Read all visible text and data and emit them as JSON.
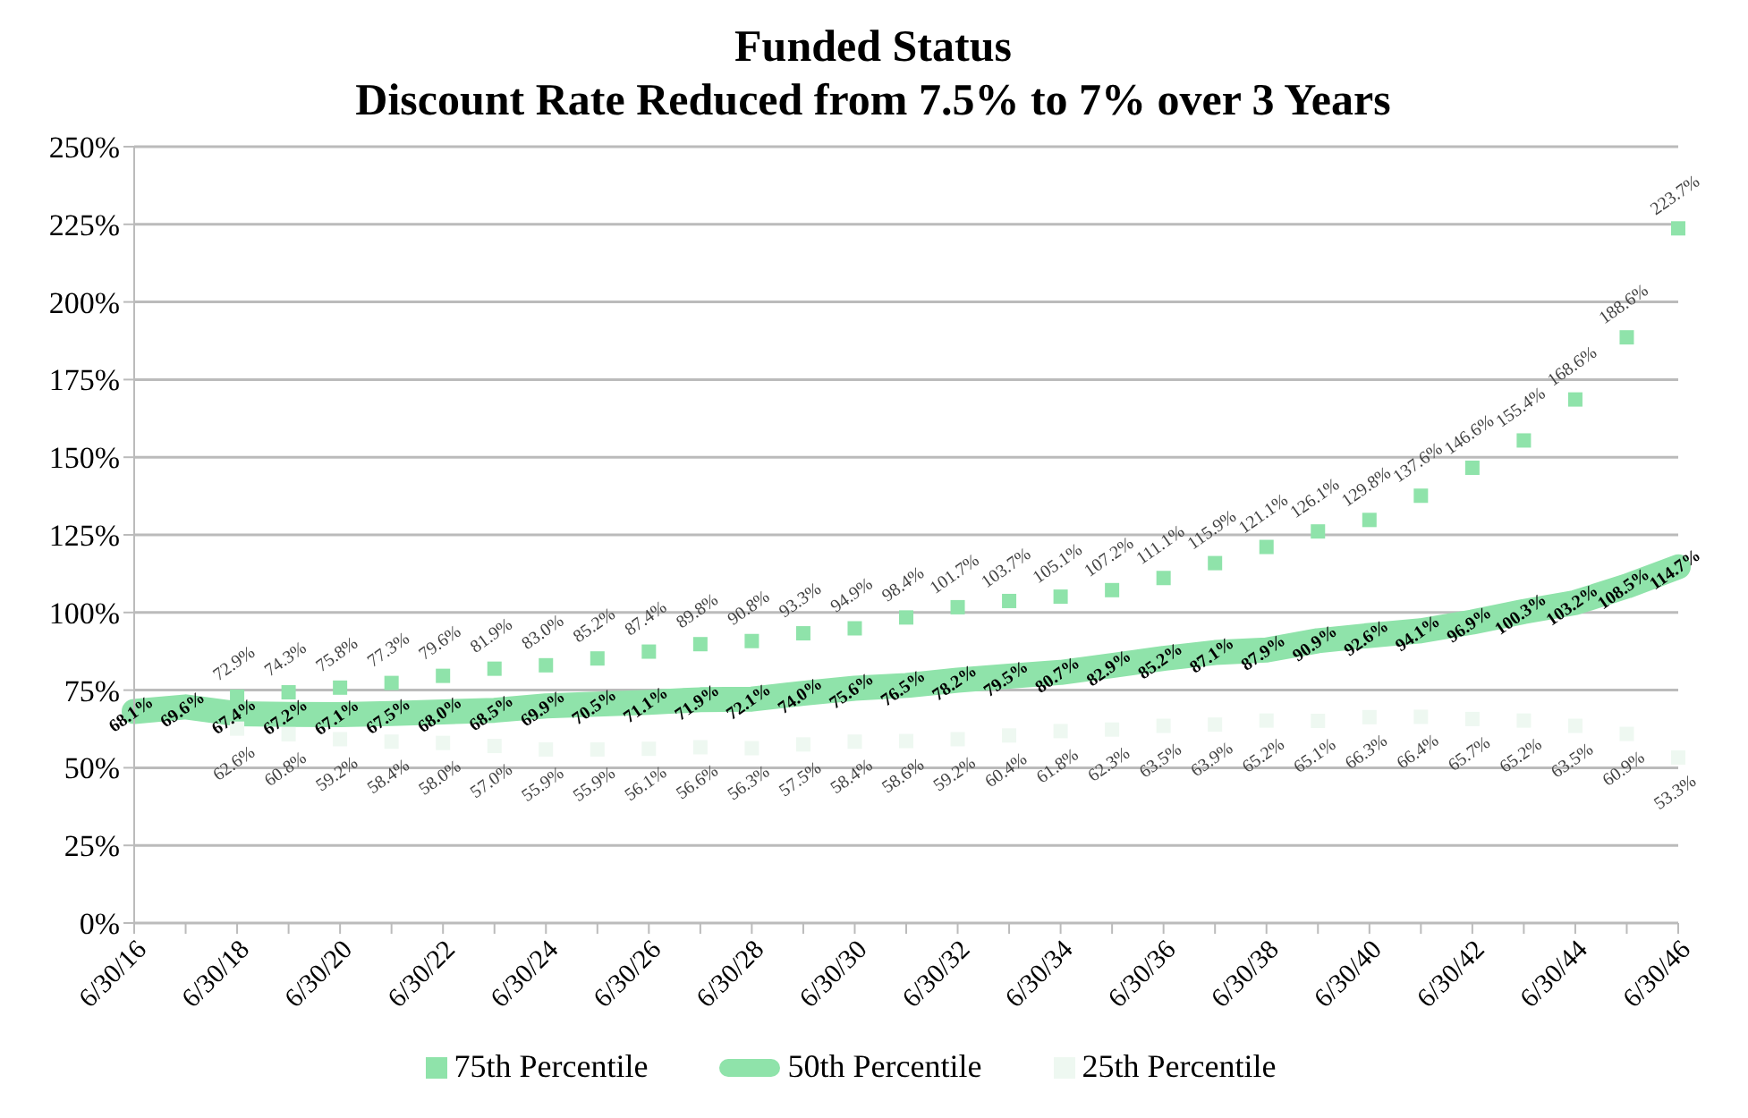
{
  "chart_data": {
    "type": "line",
    "title": "Funded Status",
    "subtitle": "Discount Rate Reduced from 7.5% to 7% over 3 Years",
    "categories": [
      "6/30/16",
      null,
      "6/30/18",
      null,
      "6/30/20",
      null,
      "6/30/22",
      null,
      "6/30/24",
      null,
      "6/30/26",
      null,
      "6/30/28",
      null,
      "6/30/30",
      null,
      "6/30/32",
      null,
      "6/30/34",
      null,
      "6/30/36",
      null,
      "6/30/38",
      null,
      "6/30/40",
      null,
      "6/30/42",
      null,
      "6/30/44",
      null,
      "6/30/46"
    ],
    "series": [
      {
        "name": "75th Percentile",
        "type": "scatter",
        "marker": "square",
        "color": "#8fe3aa",
        "values": [
          null,
          null,
          72.9,
          74.3,
          75.8,
          77.3,
          79.6,
          81.9,
          83.0,
          85.2,
          87.4,
          89.8,
          90.8,
          93.3,
          94.9,
          98.4,
          101.7,
          103.7,
          105.1,
          107.2,
          111.1,
          115.9,
          121.1,
          126.1,
          129.8,
          137.6,
          146.6,
          155.4,
          168.6,
          188.6,
          223.7
        ],
        "value_labels": [
          null,
          null,
          "72.9%",
          "74.3%",
          "75.8%",
          "77.3%",
          "79.6%",
          "81.9%",
          "83.0%",
          "85.2%",
          "87.4%",
          "89.8%",
          "90.8%",
          "93.3%",
          "94.9%",
          "98.4%",
          "101.7%",
          "103.7%",
          "105.1%",
          "107.2%",
          "111.1%",
          "115.9%",
          "121.1%",
          "126.1%",
          "129.8%",
          "137.6%",
          "146.6%",
          "155.4%",
          "168.6%",
          "188.6%",
          "223.7%"
        ]
      },
      {
        "name": "50th Percentile",
        "marker": "none",
        "color": "#8fe3aa",
        "values": [
          68.1,
          69.6,
          67.4,
          67.2,
          67.1,
          67.5,
          68.0,
          68.5,
          69.9,
          70.5,
          71.1,
          71.9,
          72.1,
          74.0,
          75.6,
          76.5,
          78.2,
          79.5,
          80.7,
          82.9,
          85.2,
          87.1,
          87.9,
          90.9,
          92.6,
          94.1,
          96.9,
          100.3,
          103.2,
          108.5,
          114.7
        ],
        "value_labels": [
          "68.1%",
          "69.6%",
          "67.4%",
          "67.2%",
          "67.1%",
          "67.5%",
          "68.0%",
          "68.5%",
          "69.9%",
          "70.5%",
          "71.1%",
          "71.9%",
          "72.1%",
          "74.0%",
          "75.6%",
          "76.5%",
          "78.2%",
          "79.5%",
          "80.7%",
          "82.9%",
          "85.2%",
          "87.1%",
          "87.9%",
          "90.9%",
          "92.6%",
          "94.1%",
          "96.9%",
          "100.3%",
          "103.2%",
          "108.5%",
          "114.7%"
        ]
      },
      {
        "name": "25th Percentile",
        "type": "scatter",
        "marker": "square",
        "color": "#eef8f1",
        "values": [
          null,
          null,
          62.6,
          60.8,
          59.2,
          58.4,
          58.0,
          57.0,
          55.9,
          55.9,
          56.1,
          56.6,
          56.3,
          57.5,
          58.4,
          58.6,
          59.2,
          60.4,
          61.8,
          62.3,
          63.5,
          63.9,
          65.2,
          65.1,
          66.3,
          66.4,
          65.7,
          65.2,
          63.5,
          60.9,
          53.3
        ],
        "value_labels": [
          null,
          null,
          "62.6%",
          "60.8%",
          "59.2%",
          "58.4%",
          "58.0%",
          "57.0%",
          "55.9%",
          "55.9%",
          "56.1%",
          "56.6%",
          "56.3%",
          "57.5%",
          "58.4%",
          "58.6%",
          "59.2%",
          "60.4%",
          "61.8%",
          "62.3%",
          "63.5%",
          "63.9%",
          "65.2%",
          "65.1%",
          "66.3%",
          "66.4%",
          "65.7%",
          "65.2%",
          "63.5%",
          "60.9%",
          "53.3%"
        ]
      }
    ],
    "ylim": [
      0,
      250
    ],
    "yticks": [
      {
        "value": 0,
        "label": "0%"
      },
      {
        "value": 25,
        "label": "25%"
      },
      {
        "value": 50,
        "label": "50%"
      },
      {
        "value": 75,
        "label": "75%"
      },
      {
        "value": 100,
        "label": "100%"
      },
      {
        "value": 125,
        "label": "125%"
      },
      {
        "value": 150,
        "label": "150%"
      },
      {
        "value": 175,
        "label": "175%"
      },
      {
        "value": 200,
        "label": "200%"
      },
      {
        "value": 225,
        "label": "225%"
      },
      {
        "value": 250,
        "label": "250%"
      }
    ],
    "grid": "y",
    "legend": "bottom"
  }
}
